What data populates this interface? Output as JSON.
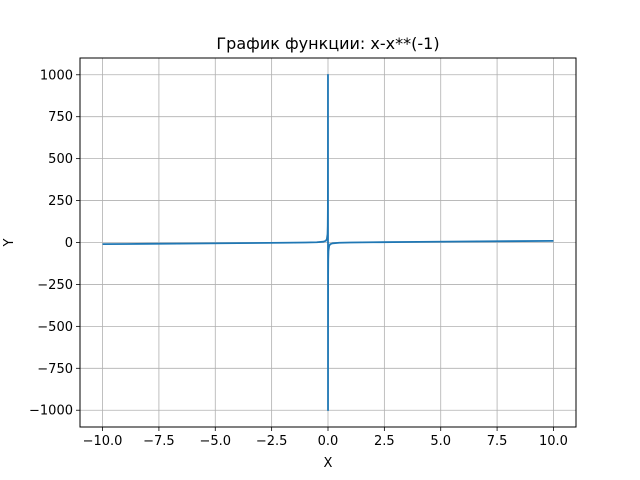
{
  "chart_data": {
    "type": "line",
    "title": "График функции: x-x**(-1)",
    "xlabel": "X",
    "ylabel": "Y",
    "xlim": [
      -11.0,
      11.0
    ],
    "ylim": [
      -1100,
      1100
    ],
    "x_ticks": [
      -10.0,
      -7.5,
      -5.0,
      -2.5,
      0.0,
      2.5,
      5.0,
      7.5,
      10.0
    ],
    "x_tick_labels": [
      "−10.0",
      "−7.5",
      "−5.0",
      "−2.5",
      "0.0",
      "2.5",
      "5.0",
      "7.5",
      "10.0"
    ],
    "y_ticks": [
      -1000,
      -750,
      -500,
      -250,
      0,
      250,
      500,
      750,
      1000
    ],
    "y_tick_labels": [
      "−1000",
      "−750",
      "−500",
      "−250",
      "0",
      "250",
      "500",
      "750",
      "1000"
    ],
    "grid": true,
    "series": [
      {
        "color": "#1f77b4",
        "x": [
          -10.0,
          -8.0,
          -6.0,
          -4.0,
          -2.0,
          -1.0,
          -0.5,
          -0.2,
          -0.1,
          -0.05,
          -0.02,
          -0.01,
          -0.005,
          -0.002,
          -0.001,
          0.001,
          0.002,
          0.005,
          0.01,
          0.02,
          0.05,
          0.1,
          0.2,
          0.5,
          1.0,
          2.0,
          4.0,
          6.0,
          8.0,
          10.0
        ],
        "y": [
          -9.9,
          -7.875,
          -5.833,
          -3.75,
          -1.5,
          0.0,
          1.5,
          4.8,
          9.9,
          19.95,
          49.98,
          99.99,
          199.995,
          499.998,
          1000.0,
          -1000.0,
          -499.998,
          -199.995,
          -99.99,
          -49.98,
          -19.95,
          -9.9,
          -4.8,
          -1.5,
          0.0,
          1.5,
          3.75,
          5.833,
          7.875,
          9.9
        ]
      }
    ]
  }
}
